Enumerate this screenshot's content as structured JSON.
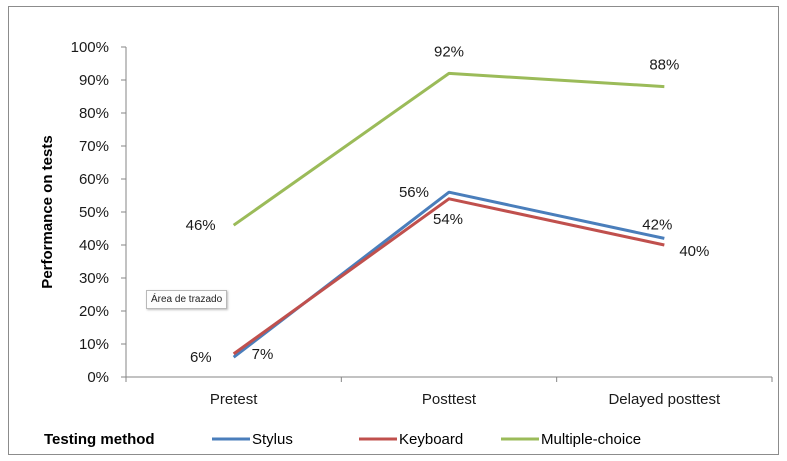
{
  "chart_data": {
    "type": "line",
    "ylabel": "Performance on tests",
    "ylim": [
      0,
      100
    ],
    "yticks": [
      "0%",
      "10%",
      "20%",
      "30%",
      "40%",
      "50%",
      "60%",
      "70%",
      "80%",
      "90%",
      "100%"
    ],
    "categories": [
      "Pretest",
      "Posttest",
      "Delayed posttest"
    ],
    "legend_title": "Testing method",
    "legend_position": "bottom",
    "grid": false,
    "series": [
      {
        "name": "Stylus",
        "color": "#4a7ebb",
        "values": [
          6,
          56,
          42
        ],
        "labels": [
          "6%",
          "56%",
          "42%"
        ]
      },
      {
        "name": "Keyboard",
        "color": "#c0504d",
        "values": [
          7,
          54,
          40
        ],
        "labels": [
          "7%",
          "54%",
          "40%"
        ]
      },
      {
        "name": "Multiple-choice",
        "color": "#9bbb59",
        "values": [
          46,
          92,
          88
        ],
        "labels": [
          "46%",
          "92%",
          "88%"
        ]
      }
    ]
  },
  "tooltip": {
    "text": "Área de trazado"
  }
}
